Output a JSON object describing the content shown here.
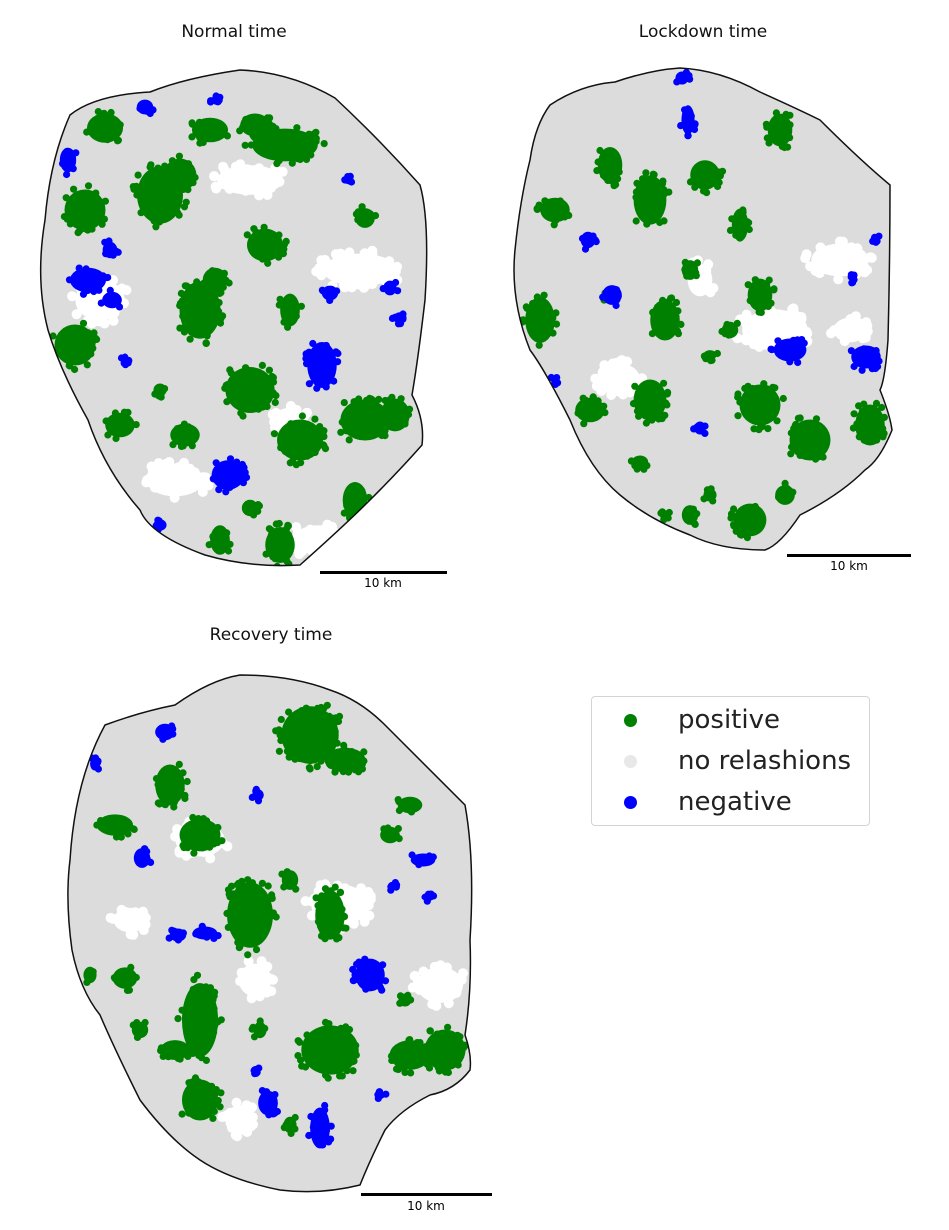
{
  "panels": [
    {
      "title": "Normal time",
      "scale_label": "10 km"
    },
    {
      "title": "Lockdown time",
      "scale_label": "10 km"
    },
    {
      "title": "Recovery time",
      "scale_label": "10 km"
    }
  ],
  "legend": {
    "items": [
      {
        "label": "positive",
        "color": "#008000"
      },
      {
        "label": "no relashions",
        "color": "#e8e8e8"
      },
      {
        "label": "negative",
        "color": "#0000ff"
      }
    ]
  },
  "colors": {
    "positive": "#008000",
    "neutral": "#dcdcdc",
    "negative": "#0000ff",
    "outline": "#111111"
  }
}
